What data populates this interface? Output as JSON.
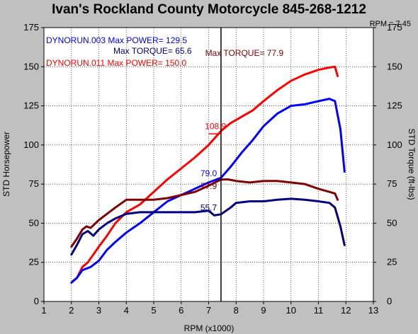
{
  "chart_data": {
    "type": "line",
    "title": "Ivan's Rockland County Motorcycle  845-268-1212",
    "cursor_label": "RPM = 7.45",
    "cursor_x": 7.45,
    "xlabel": "RPM (x1000)",
    "ylabel_left": "STD Horsepower",
    "ylabel_right": "STD Torque (ft-lbs)",
    "xlim": [
      1,
      13
    ],
    "ylim": [
      0,
      175
    ],
    "x_ticks": [
      1,
      2,
      3,
      4,
      5,
      6,
      7,
      8,
      9,
      10,
      11,
      12,
      13
    ],
    "y_ticks": [
      0,
      25,
      50,
      75,
      100,
      125,
      150,
      175
    ],
    "grid": true,
    "legend": [
      {
        "text": "DYNORUN.003  Max POWER= 129.5",
        "color": "#0000ff"
      },
      {
        "text": "Max TORQUE= 65.6",
        "color": "#000080"
      },
      {
        "text": "DYNORUN.011  Max POWER= 150.0",
        "color": "#ff0000"
      }
    ],
    "series": [
      {
        "color": "#ff0000",
        "x": [
          2.05,
          2.2,
          2.4,
          2.6,
          2.8,
          3.0,
          3.3,
          3.6,
          4.0,
          4.5,
          5.0,
          5.5,
          6.0,
          6.5,
          7.0,
          7.45,
          7.8,
          8.2,
          8.6,
          9.0,
          9.5,
          10.0,
          10.5,
          11.0,
          11.4,
          11.6,
          11.7
        ],
        "y": [
          13,
          15,
          22,
          25,
          30,
          35,
          42,
          50,
          57,
          62,
          70,
          78,
          85,
          92,
          100,
          108.9,
          114,
          118,
          122,
          128,
          135,
          141,
          145,
          148,
          149.5,
          150,
          144
        ]
      },
      {
        "color": "#0000ff",
        "x": [
          2.0,
          2.2,
          2.4,
          2.7,
          3.0,
          3.3,
          3.6,
          4.0,
          4.5,
          5.0,
          5.5,
          6.0,
          6.5,
          7.0,
          7.45,
          7.8,
          8.2,
          8.6,
          9.0,
          9.5,
          10.0,
          10.5,
          11.0,
          11.4,
          11.6,
          11.8,
          11.95
        ],
        "y": [
          12,
          15,
          20,
          22,
          26,
          33,
          38,
          44,
          50,
          57,
          64,
          68,
          72,
          76,
          79,
          86,
          95,
          103,
          112,
          120,
          125,
          126,
          128,
          129.5,
          128,
          110,
          83
        ]
      },
      {
        "color": "#800000",
        "x": [
          2.0,
          2.2,
          2.4,
          2.55,
          2.7,
          3.0,
          3.3,
          3.6,
          4.0,
          4.5,
          5.0,
          5.5,
          6.0,
          6.5,
          7.0,
          7.45,
          7.7,
          8.0,
          8.5,
          9.0,
          9.5,
          10.0,
          10.5,
          11.0,
          11.4,
          11.6,
          11.7
        ],
        "y": [
          35,
          40,
          46,
          48,
          47,
          52,
          56,
          60,
          65,
          65,
          65,
          66,
          68,
          70,
          74,
          77.9,
          78,
          77,
          76,
          77,
          77,
          76,
          75,
          72,
          70,
          69,
          65
        ]
      },
      {
        "color": "#000080",
        "x": [
          2.0,
          2.2,
          2.4,
          2.6,
          2.8,
          3.0,
          3.3,
          3.6,
          4.0,
          4.5,
          5.0,
          5.5,
          6.0,
          6.5,
          7.0,
          7.2,
          7.45,
          7.8,
          8.0,
          8.5,
          9.0,
          9.5,
          10.0,
          10.5,
          11.0,
          11.4,
          11.6,
          11.8,
          11.95
        ],
        "y": [
          30,
          36,
          43,
          45,
          42,
          46,
          50,
          53,
          56,
          57,
          57,
          57,
          57,
          57,
          58,
          55,
          55.7,
          60,
          63,
          64,
          64,
          65,
          65.6,
          65,
          64,
          63,
          60,
          48,
          36
        ]
      }
    ],
    "annotations": [
      {
        "text": "Max TORQUE= 77.9",
        "x": 8.3,
        "y": 157,
        "color": "#800000"
      },
      {
        "text": "108.9",
        "x": 7.25,
        "y": 110,
        "color": "#ff0000"
      },
      {
        "text": "79.0",
        "x": 7.0,
        "y": 80,
        "color": "#0000ff"
      },
      {
        "text": "77.9",
        "x": 7.0,
        "y": 72,
        "color": "#800000"
      },
      {
        "text": "55.7",
        "x": 7.0,
        "y": 58,
        "color": "#000080"
      }
    ]
  }
}
